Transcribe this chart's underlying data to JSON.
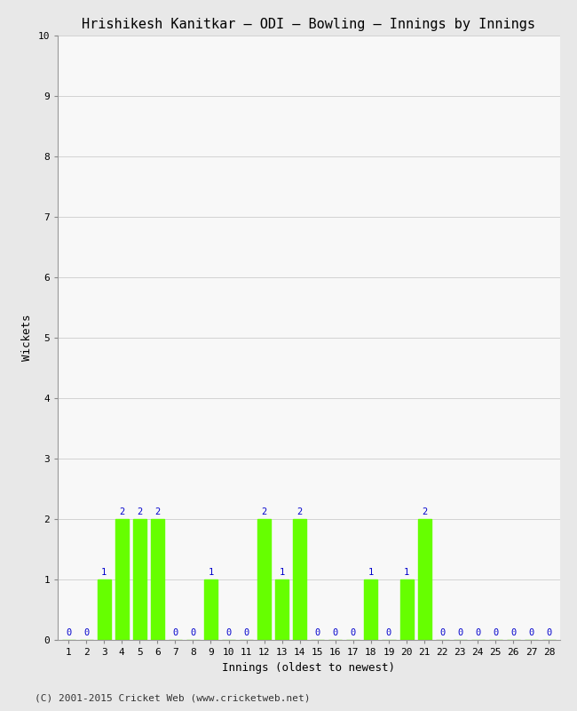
{
  "title": "Hrishikesh Kanitkar – ODI – Bowling – Innings by Innings",
  "xlabel": "Innings (oldest to newest)",
  "ylabel": "Wickets",
  "bar_color": "#66ff00",
  "label_color": "#0000cc",
  "background_color": "#e8e8e8",
  "plot_background": "#f8f8f8",
  "ylim": [
    0,
    10
  ],
  "yticks": [
    0,
    1,
    2,
    3,
    4,
    5,
    6,
    7,
    8,
    9,
    10
  ],
  "innings": [
    1,
    2,
    3,
    4,
    5,
    6,
    7,
    8,
    9,
    10,
    11,
    12,
    13,
    14,
    15,
    16,
    17,
    18,
    19,
    20,
    21,
    22,
    23,
    24,
    25,
    26,
    27,
    28
  ],
  "wickets": [
    0,
    0,
    1,
    2,
    2,
    2,
    0,
    0,
    1,
    0,
    0,
    2,
    1,
    2,
    0,
    0,
    0,
    1,
    0,
    1,
    2,
    0,
    0,
    0,
    0,
    0,
    0,
    0
  ],
  "footer": "(C) 2001-2015 Cricket Web (www.cricketweb.net)",
  "title_fontsize": 11,
  "axis_label_fontsize": 9,
  "tick_fontsize": 8,
  "annotation_fontsize": 7.5,
  "footer_fontsize": 8
}
